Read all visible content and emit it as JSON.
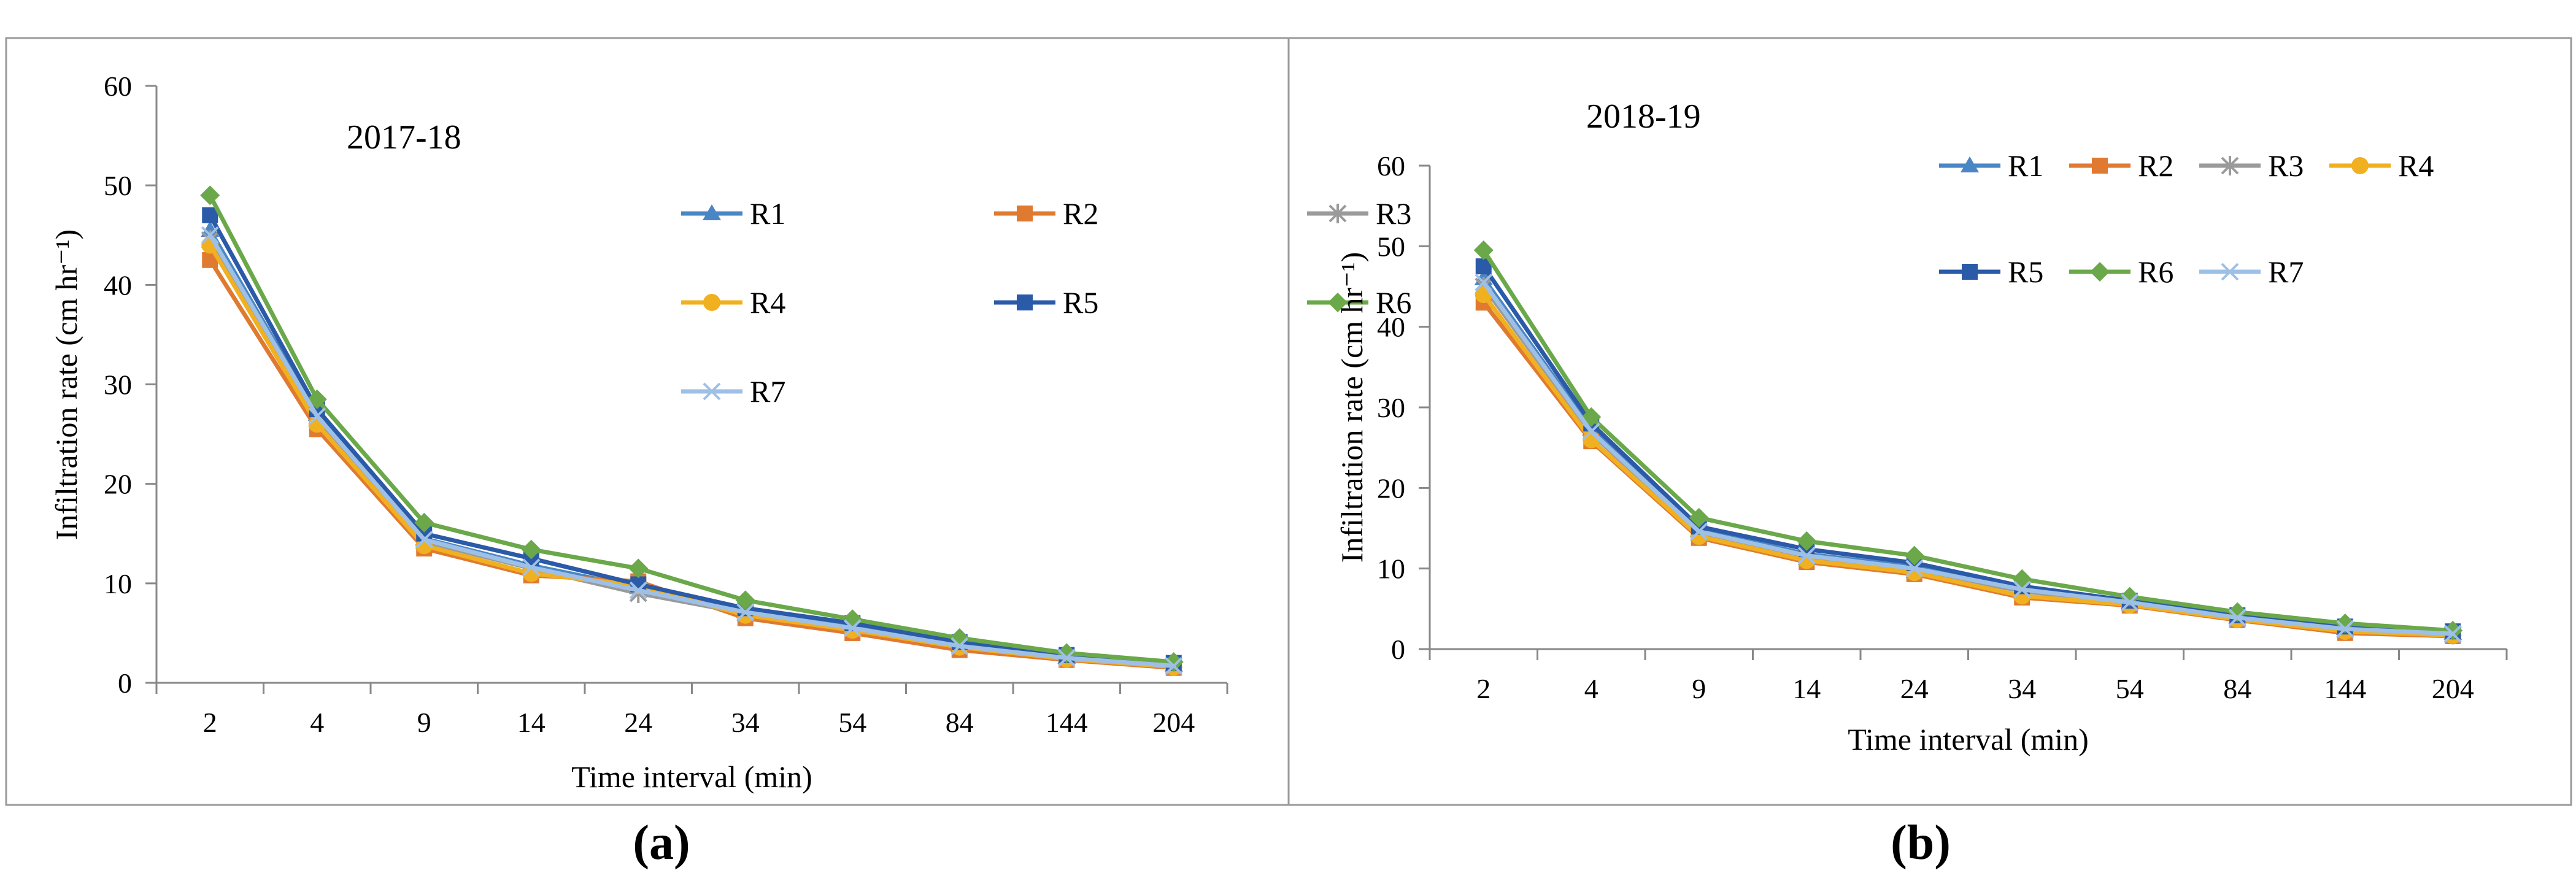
{
  "colors": {
    "R1": "#4a86c5",
    "R2": "#e07a30",
    "R3": "#9a9a9a",
    "R4": "#f0b020",
    "R5": "#2a5aa8",
    "R6": "#6aa84a",
    "R7": "#9ec0e6"
  },
  "chart_data": [
    {
      "type": "line",
      "panel_label": "(a)",
      "title": "2017-18",
      "xlabel": "Time interval (min)",
      "ylabel": "Infiltration rate (cm hr⁻¹)",
      "ylim": [
        0,
        60
      ],
      "yticks": [
        0,
        10,
        20,
        30,
        40,
        50,
        60
      ],
      "categories": [
        "2",
        "4",
        "9",
        "14",
        "24",
        "34",
        "54",
        "84",
        "144",
        "204"
      ],
      "legend_placement": "top-right, 3 columns",
      "series": [
        {
          "name": "R1",
          "marker": "triangle",
          "values": [
            45.5,
            27.0,
            14.5,
            11.8,
            9.6,
            7.2,
            5.6,
            3.8,
            2.6,
            1.8
          ]
        },
        {
          "name": "R2",
          "marker": "square",
          "values": [
            42.5,
            25.5,
            13.5,
            10.8,
            10.2,
            6.5,
            5.0,
            3.3,
            2.3,
            1.5
          ]
        },
        {
          "name": "R3",
          "marker": "asterisk",
          "values": [
            44.5,
            26.5,
            14.2,
            11.5,
            9.0,
            7.0,
            5.5,
            3.7,
            2.5,
            1.7
          ]
        },
        {
          "name": "R4",
          "marker": "circle",
          "values": [
            44.0,
            26.0,
            13.8,
            11.0,
            9.8,
            6.8,
            5.3,
            3.6,
            2.4,
            1.6
          ]
        },
        {
          "name": "R5",
          "marker": "square",
          "values": [
            47.0,
            27.5,
            15.0,
            12.5,
            9.9,
            7.5,
            6.0,
            4.1,
            2.8,
            2.0
          ]
        },
        {
          "name": "R6",
          "marker": "diamond",
          "values": [
            49.0,
            28.5,
            16.1,
            13.4,
            11.5,
            8.3,
            6.4,
            4.5,
            3.0,
            2.1
          ]
        },
        {
          "name": "R7",
          "marker": "x",
          "values": [
            45.0,
            26.8,
            14.4,
            11.6,
            9.3,
            7.1,
            5.5,
            3.7,
            2.5,
            1.7
          ]
        }
      ]
    },
    {
      "type": "line",
      "panel_label": "(b)",
      "title": "2018-19",
      "xlabel": "Time interval (min)",
      "ylabel": "Infiltration rate (cm hr⁻¹)",
      "ylim": [
        0,
        60
      ],
      "yticks": [
        0,
        10,
        20,
        30,
        40,
        50,
        60
      ],
      "categories": [
        "2",
        "4",
        "9",
        "14",
        "24",
        "34",
        "54",
        "84",
        "144",
        "204"
      ],
      "legend_placement": "top-right, 4 columns",
      "series": [
        {
          "name": "R1",
          "marker": "triangle",
          "values": [
            46.0,
            27.3,
            14.8,
            11.8,
            10.2,
            7.5,
            5.8,
            4.0,
            2.6,
            2.0
          ]
        },
        {
          "name": "R2",
          "marker": "square",
          "values": [
            43.0,
            25.8,
            13.8,
            10.8,
            9.3,
            6.4,
            5.4,
            3.6,
            2.0,
            1.6
          ]
        },
        {
          "name": "R3",
          "marker": "asterisk",
          "values": [
            45.0,
            26.8,
            14.4,
            11.4,
            9.8,
            7.2,
            5.7,
            3.8,
            2.4,
            1.8
          ]
        },
        {
          "name": "R4",
          "marker": "circle",
          "values": [
            44.0,
            26.0,
            14.0,
            11.0,
            9.5,
            6.6,
            5.5,
            3.7,
            2.2,
            1.7
          ]
        },
        {
          "name": "R5",
          "marker": "square",
          "values": [
            47.5,
            28.0,
            15.2,
            12.4,
            10.7,
            7.8,
            6.0,
            4.2,
            2.8,
            2.2
          ]
        },
        {
          "name": "R6",
          "marker": "diamond",
          "values": [
            49.5,
            28.8,
            16.3,
            13.4,
            11.6,
            8.7,
            6.5,
            4.6,
            3.2,
            2.3
          ]
        },
        {
          "name": "R7",
          "marker": "x",
          "values": [
            45.5,
            27.0,
            14.6,
            11.6,
            10.0,
            7.4,
            5.8,
            3.9,
            2.5,
            1.9
          ]
        }
      ]
    }
  ]
}
